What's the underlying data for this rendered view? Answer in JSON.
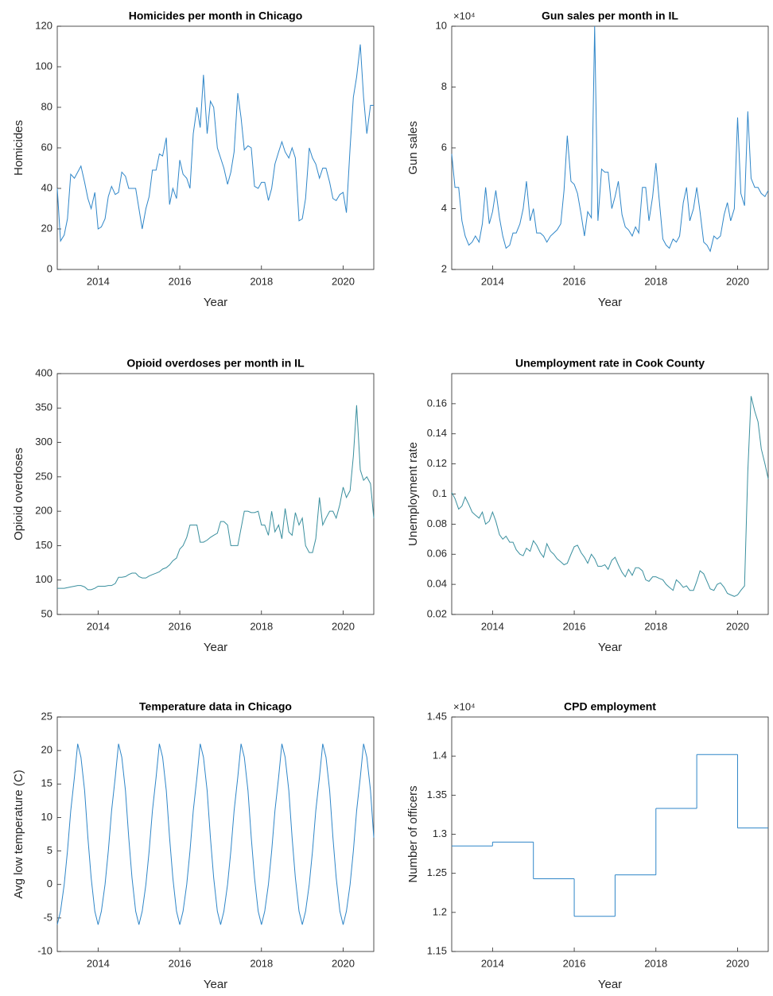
{
  "chart_data": [
    {
      "type": "line",
      "title": "Homicides per month in Chicago",
      "xlabel": "Year",
      "ylabel": "Homicides",
      "color": "#2f86c8",
      "x": [
        2013,
        2013.08,
        2013.17,
        2013.25,
        2013.33,
        2013.42,
        2013.5,
        2013.58,
        2013.67,
        2013.75,
        2013.83,
        2013.92,
        2014,
        2014.08,
        2014.17,
        2014.25,
        2014.33,
        2014.42,
        2014.5,
        2014.58,
        2014.67,
        2014.75,
        2014.83,
        2014.92,
        2015,
        2015.08,
        2015.17,
        2015.25,
        2015.33,
        2015.42,
        2015.5,
        2015.58,
        2015.67,
        2015.75,
        2015.83,
        2015.92,
        2016,
        2016.08,
        2016.17,
        2016.25,
        2016.33,
        2016.42,
        2016.5,
        2016.58,
        2016.67,
        2016.75,
        2016.83,
        2016.92,
        2017,
        2017.08,
        2017.17,
        2017.25,
        2017.33,
        2017.42,
        2017.5,
        2017.58,
        2017.67,
        2017.75,
        2017.83,
        2017.92,
        2018,
        2018.08,
        2018.17,
        2018.25,
        2018.33,
        2018.42,
        2018.5,
        2018.58,
        2018.67,
        2018.75,
        2018.83,
        2018.92,
        2019,
        2019.08,
        2019.17,
        2019.25,
        2019.33,
        2019.42,
        2019.5,
        2019.58,
        2019.67,
        2019.75,
        2019.83,
        2019.92,
        2020,
        2020.08,
        2020.17,
        2020.25,
        2020.33,
        2020.42,
        2020.5,
        2020.58,
        2020.67,
        2020.75
      ],
      "values": [
        40,
        14,
        17,
        25,
        47,
        45,
        48,
        51,
        43,
        35,
        30,
        38,
        20,
        21,
        25,
        36,
        41,
        37,
        38,
        48,
        46,
        40,
        40,
        40,
        30,
        20,
        30,
        36,
        49,
        49,
        57,
        56,
        65,
        32,
        40,
        35,
        54,
        47,
        45,
        40,
        67,
        80,
        70,
        96,
        67,
        83,
        80,
        60,
        55,
        50,
        42,
        48,
        58,
        87,
        75,
        59,
        61,
        60,
        41,
        40,
        43,
        43,
        34,
        40,
        52,
        58,
        63,
        58,
        55,
        60,
        55,
        24,
        25,
        35,
        60,
        55,
        52,
        45,
        50,
        50,
        43,
        35,
        34,
        37,
        38,
        28,
        60,
        85,
        95,
        111,
        85,
        67,
        81,
        81
      ],
      "xlim": [
        2013,
        2020.75
      ],
      "ylim": [
        0,
        120
      ],
      "xticks": [
        2014,
        2016,
        2018,
        2020
      ],
      "yticks": [
        0,
        20,
        40,
        60,
        80,
        100,
        120
      ]
    },
    {
      "type": "line",
      "title": "Gun sales per month in IL",
      "xlabel": "Year",
      "ylabel": "Gun sales",
      "color": "#2f86c8",
      "y_exponent_label": "×10⁴",
      "x": [
        2013,
        2013.08,
        2013.17,
        2013.25,
        2013.33,
        2013.42,
        2013.5,
        2013.58,
        2013.67,
        2013.75,
        2013.83,
        2013.92,
        2014,
        2014.08,
        2014.17,
        2014.25,
        2014.33,
        2014.42,
        2014.5,
        2014.58,
        2014.67,
        2014.75,
        2014.83,
        2014.92,
        2015,
        2015.08,
        2015.17,
        2015.25,
        2015.33,
        2015.42,
        2015.5,
        2015.58,
        2015.67,
        2015.75,
        2015.83,
        2015.92,
        2016,
        2016.08,
        2016.17,
        2016.25,
        2016.33,
        2016.42,
        2016.5,
        2016.58,
        2016.67,
        2016.75,
        2016.83,
        2016.92,
        2017,
        2017.08,
        2017.17,
        2017.25,
        2017.33,
        2017.42,
        2017.5,
        2017.58,
        2017.67,
        2017.75,
        2017.83,
        2017.92,
        2018,
        2018.08,
        2018.17,
        2018.25,
        2018.33,
        2018.42,
        2018.5,
        2018.58,
        2018.67,
        2018.75,
        2018.83,
        2018.92,
        2019,
        2019.08,
        2019.17,
        2019.25,
        2019.33,
        2019.42,
        2019.5,
        2019.58,
        2019.67,
        2019.75,
        2019.83,
        2019.92,
        2020,
        2020.08,
        2020.17,
        2020.25,
        2020.33,
        2020.42,
        2020.5,
        2020.58,
        2020.67,
        2020.75
      ],
      "values": [
        58000,
        47000,
        47000,
        36000,
        31000,
        28000,
        29000,
        31000,
        29000,
        35000,
        47000,
        35000,
        39000,
        46000,
        37000,
        31000,
        27000,
        28000,
        32000,
        32000,
        35000,
        40000,
        49000,
        36000,
        40000,
        32000,
        32000,
        31000,
        29000,
        31000,
        32000,
        33000,
        35000,
        46000,
        64000,
        49000,
        48000,
        45000,
        38000,
        31000,
        39000,
        37000,
        100000,
        36000,
        53000,
        52000,
        52000,
        40000,
        44000,
        49000,
        38000,
        34000,
        33000,
        31000,
        34000,
        32000,
        47000,
        47000,
        36000,
        44000,
        55000,
        43000,
        30000,
        28000,
        27000,
        30000,
        29000,
        31000,
        42000,
        47000,
        36000,
        40000,
        47000,
        39000,
        29000,
        28000,
        26000,
        31000,
        30000,
        31000,
        38000,
        42000,
        36000,
        40000,
        70000,
        45000,
        41000,
        72000,
        50000,
        47000,
        47000,
        45000,
        44000,
        46000
      ],
      "xlim": [
        2013,
        2020.75
      ],
      "ylim": [
        20000,
        100000
      ],
      "xticks": [
        2014,
        2016,
        2018,
        2020
      ],
      "yticks": [
        {
          "value": 20000,
          "label": "2"
        },
        {
          "value": 40000,
          "label": "4"
        },
        {
          "value": 60000,
          "label": "6"
        },
        {
          "value": 80000,
          "label": "8"
        },
        {
          "value": 100000,
          "label": "10"
        }
      ]
    },
    {
      "type": "line",
      "title": "Opioid overdoses per month in IL",
      "xlabel": "Year",
      "ylabel": "Opioid overdoses",
      "color": "#3a8f9e",
      "x": [
        2013,
        2013.08,
        2013.17,
        2013.25,
        2013.33,
        2013.42,
        2013.5,
        2013.58,
        2013.67,
        2013.75,
        2013.83,
        2013.92,
        2014,
        2014.08,
        2014.17,
        2014.25,
        2014.33,
        2014.42,
        2014.5,
        2014.58,
        2014.67,
        2014.75,
        2014.83,
        2014.92,
        2015,
        2015.08,
        2015.17,
        2015.25,
        2015.33,
        2015.42,
        2015.5,
        2015.58,
        2015.67,
        2015.75,
        2015.83,
        2015.92,
        2016,
        2016.08,
        2016.17,
        2016.25,
        2016.33,
        2016.42,
        2016.5,
        2016.58,
        2016.67,
        2016.75,
        2016.83,
        2016.92,
        2017,
        2017.08,
        2017.17,
        2017.25,
        2017.33,
        2017.42,
        2017.5,
        2017.58,
        2017.67,
        2017.75,
        2017.83,
        2017.92,
        2018,
        2018.08,
        2018.17,
        2018.25,
        2018.33,
        2018.42,
        2018.5,
        2018.58,
        2018.67,
        2018.75,
        2018.83,
        2018.92,
        2019,
        2019.08,
        2019.17,
        2019.25,
        2019.33,
        2019.42,
        2019.5,
        2019.58,
        2019.67,
        2019.75,
        2019.83,
        2019.92,
        2020,
        2020.08,
        2020.17,
        2020.25,
        2020.33,
        2020.42,
        2020.5,
        2020.58,
        2020.67,
        2020.75
      ],
      "values": [
        88,
        88,
        88,
        89,
        90,
        91,
        92,
        92,
        90,
        86,
        86,
        88,
        91,
        91,
        91,
        92,
        92,
        95,
        104,
        104,
        105,
        108,
        110,
        110,
        105,
        103,
        103,
        106,
        108,
        110,
        112,
        116,
        118,
        122,
        128,
        132,
        145,
        150,
        162,
        180,
        180,
        180,
        155,
        155,
        158,
        162,
        165,
        168,
        185,
        185,
        180,
        150,
        150,
        150,
        175,
        200,
        200,
        198,
        198,
        200,
        180,
        180,
        165,
        200,
        170,
        180,
        160,
        204,
        170,
        165,
        198,
        180,
        190,
        150,
        140,
        140,
        160,
        220,
        180,
        190,
        200,
        200,
        190,
        210,
        235,
        220,
        230,
        280,
        354,
        260,
        245,
        250,
        240,
        190
      ],
      "xlim": [
        2013,
        2020.75
      ],
      "ylim": [
        50,
        400
      ],
      "xticks": [
        2014,
        2016,
        2018,
        2020
      ],
      "yticks": [
        50,
        100,
        150,
        200,
        250,
        300,
        350,
        400
      ]
    },
    {
      "type": "line",
      "title": "Unemployment rate in Cook County",
      "xlabel": "Year",
      "ylabel": "Unemployment rate",
      "color": "#3a8f9e",
      "x": [
        2013,
        2013.08,
        2013.17,
        2013.25,
        2013.33,
        2013.42,
        2013.5,
        2013.58,
        2013.67,
        2013.75,
        2013.83,
        2013.92,
        2014,
        2014.08,
        2014.17,
        2014.25,
        2014.33,
        2014.42,
        2014.5,
        2014.58,
        2014.67,
        2014.75,
        2014.83,
        2014.92,
        2015,
        2015.08,
        2015.17,
        2015.25,
        2015.33,
        2015.42,
        2015.5,
        2015.58,
        2015.67,
        2015.75,
        2015.83,
        2015.92,
        2016,
        2016.08,
        2016.17,
        2016.25,
        2016.33,
        2016.42,
        2016.5,
        2016.58,
        2016.67,
        2016.75,
        2016.83,
        2016.92,
        2017,
        2017.08,
        2017.17,
        2017.25,
        2017.33,
        2017.42,
        2017.5,
        2017.58,
        2017.67,
        2017.75,
        2017.83,
        2017.92,
        2018,
        2018.08,
        2018.17,
        2018.25,
        2018.33,
        2018.42,
        2018.5,
        2018.58,
        2018.67,
        2018.75,
        2018.83,
        2018.92,
        2019,
        2019.08,
        2019.17,
        2019.25,
        2019.33,
        2019.42,
        2019.5,
        2019.58,
        2019.67,
        2019.75,
        2019.83,
        2019.92,
        2020,
        2020.08,
        2020.17,
        2020.25,
        2020.33,
        2020.42,
        2020.5,
        2020.58,
        2020.67,
        2020.75
      ],
      "values": [
        0.101,
        0.097,
        0.09,
        0.092,
        0.098,
        0.093,
        0.088,
        0.086,
        0.084,
        0.088,
        0.08,
        0.082,
        0.088,
        0.082,
        0.073,
        0.07,
        0.072,
        0.068,
        0.068,
        0.063,
        0.06,
        0.059,
        0.064,
        0.062,
        0.069,
        0.066,
        0.061,
        0.058,
        0.067,
        0.062,
        0.06,
        0.057,
        0.055,
        0.053,
        0.054,
        0.06,
        0.065,
        0.066,
        0.061,
        0.058,
        0.054,
        0.06,
        0.057,
        0.052,
        0.052,
        0.053,
        0.05,
        0.056,
        0.058,
        0.053,
        0.048,
        0.045,
        0.05,
        0.046,
        0.051,
        0.051,
        0.049,
        0.043,
        0.042,
        0.045,
        0.045,
        0.044,
        0.043,
        0.04,
        0.038,
        0.036,
        0.043,
        0.041,
        0.038,
        0.039,
        0.036,
        0.036,
        0.042,
        0.049,
        0.047,
        0.042,
        0.037,
        0.036,
        0.04,
        0.041,
        0.038,
        0.034,
        0.033,
        0.032,
        0.033,
        0.036,
        0.039,
        0.115,
        0.165,
        0.155,
        0.148,
        0.13,
        0.12,
        0.11
      ],
      "xlim": [
        2013,
        2020.75
      ],
      "ylim": [
        0.02,
        0.18
      ],
      "xticks": [
        2014,
        2016,
        2018,
        2020
      ],
      "yticks": [
        0.02,
        0.04,
        0.06,
        0.08,
        0.1,
        0.12,
        0.14,
        0.16
      ]
    },
    {
      "type": "line",
      "title": "Temperature data in Chicago",
      "xlabel": "Year",
      "ylabel": "Avg low temperature (C)",
      "color": "#2f86c8",
      "x": [
        2013,
        2013.08,
        2013.17,
        2013.25,
        2013.33,
        2013.42,
        2013.5,
        2013.58,
        2013.67,
        2013.75,
        2013.83,
        2013.92,
        2014,
        2014.08,
        2014.17,
        2014.25,
        2014.33,
        2014.42,
        2014.5,
        2014.58,
        2014.67,
        2014.75,
        2014.83,
        2014.92,
        2015,
        2015.08,
        2015.17,
        2015.25,
        2015.33,
        2015.42,
        2015.5,
        2015.58,
        2015.67,
        2015.75,
        2015.83,
        2015.92,
        2016,
        2016.08,
        2016.17,
        2016.25,
        2016.33,
        2016.42,
        2016.5,
        2016.58,
        2016.67,
        2016.75,
        2016.83,
        2016.92,
        2017,
        2017.08,
        2017.17,
        2017.25,
        2017.33,
        2017.42,
        2017.5,
        2017.58,
        2017.67,
        2017.75,
        2017.83,
        2017.92,
        2018,
        2018.08,
        2018.17,
        2018.25,
        2018.33,
        2018.42,
        2018.5,
        2018.58,
        2018.67,
        2018.75,
        2018.83,
        2018.92,
        2019,
        2019.08,
        2019.17,
        2019.25,
        2019.33,
        2019.42,
        2019.5,
        2019.58,
        2019.67,
        2019.75,
        2019.83,
        2019.92,
        2020,
        2020.08,
        2020.17,
        2020.25,
        2020.33,
        2020.42,
        2020.5,
        2020.58,
        2020.67,
        2020.75
      ],
      "values": [
        -6,
        -4,
        0,
        5,
        11,
        16,
        21,
        19,
        14,
        7,
        1,
        -4,
        -6,
        -4,
        0,
        5,
        11,
        16,
        21,
        19,
        14,
        7,
        1,
        -4,
        -6,
        -4,
        0,
        5,
        11,
        16,
        21,
        19,
        14,
        7,
        1,
        -4,
        -6,
        -4,
        0,
        5,
        11,
        16,
        21,
        19,
        14,
        7,
        1,
        -4,
        -6,
        -4,
        0,
        5,
        11,
        16,
        21,
        19,
        14,
        7,
        1,
        -4,
        -6,
        -4,
        0,
        5,
        11,
        16,
        21,
        19,
        14,
        7,
        1,
        -4,
        -6,
        -4,
        0,
        5,
        11,
        16,
        21,
        19,
        14,
        7,
        1,
        -4,
        -6,
        -4,
        0,
        5,
        11,
        16,
        21,
        19,
        14,
        7
      ],
      "xlim": [
        2013,
        2020.75
      ],
      "ylim": [
        -10,
        25
      ],
      "xticks": [
        2014,
        2016,
        2018,
        2020
      ],
      "yticks": [
        -10,
        -5,
        0,
        5,
        10,
        15,
        20,
        25
      ]
    },
    {
      "type": "stairs",
      "title": "CPD employment",
      "xlabel": "Year",
      "ylabel": "Number of officers",
      "color": "#2f86c8",
      "y_exponent_label": "×10⁴",
      "x": [
        2013,
        2014,
        2015,
        2016,
        2017,
        2018,
        2019,
        2020
      ],
      "values": [
        12850,
        12900,
        12430,
        11950,
        12480,
        13330,
        14020,
        13080
      ],
      "xlim": [
        2013,
        2020.75
      ],
      "ylim": [
        11500,
        14500
      ],
      "xticks": [
        2014,
        2016,
        2018,
        2020
      ],
      "yticks": [
        {
          "value": 11500,
          "label": "1.15"
        },
        {
          "value": 12000,
          "label": "1.2"
        },
        {
          "value": 12500,
          "label": "1.25"
        },
        {
          "value": 13000,
          "label": "1.3"
        },
        {
          "value": 13500,
          "label": "1.35"
        },
        {
          "value": 14000,
          "label": "1.4"
        },
        {
          "value": 14500,
          "label": "1.45"
        }
      ]
    }
  ]
}
